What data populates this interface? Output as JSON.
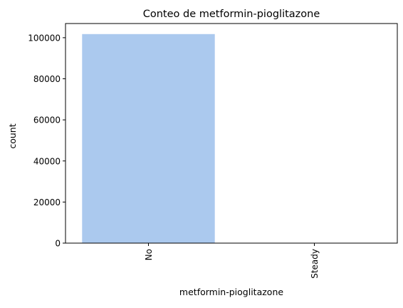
{
  "chart_data": {
    "type": "bar",
    "title": "Conteo de metformin-pioglitazone",
    "xlabel": "metformin-pioglitazone",
    "ylabel": "count",
    "categories": [
      "No",
      "Steady"
    ],
    "values": [
      101765,
      1
    ],
    "ylim": [
      0,
      106900
    ],
    "yticks": [
      0,
      20000,
      40000,
      60000,
      80000,
      100000
    ],
    "ytick_labels": [
      "0",
      "20000",
      "40000",
      "60000",
      "80000",
      "100000"
    ],
    "xtick_rotation": "vertical",
    "grid": false,
    "legend": "none",
    "colors": {
      "bar": "#abc9ee",
      "axis": "#000000",
      "background": "#ffffff"
    }
  }
}
